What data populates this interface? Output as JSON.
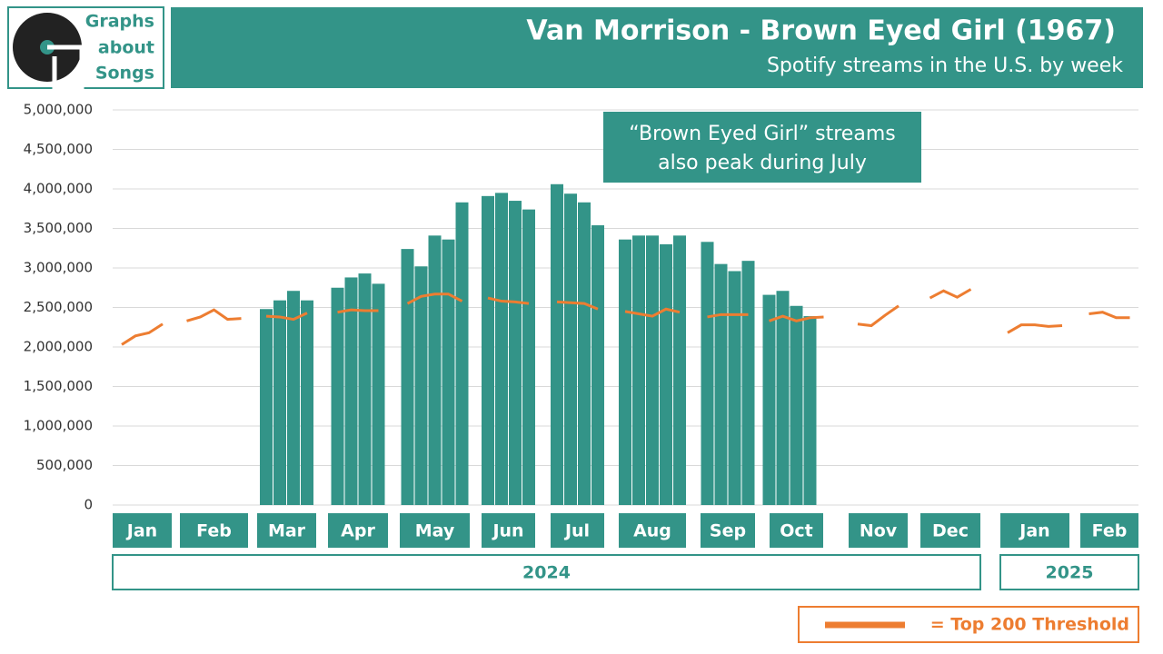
{
  "logo": {
    "text": [
      "Graphs",
      "about",
      "Songs"
    ]
  },
  "chart_data": {
    "type": "bar",
    "title": "Van Morrison - Brown Eyed Girl (1967)",
    "subtitle": "Spotify streams in the U.S. by week",
    "annotation": [
      "“Brown Eyed Girl” streams",
      "also peak during July"
    ],
    "color": "#339488",
    "line_color": "#ed7d31",
    "legend": {
      "label": "= Top 200 Threshold",
      "position": "bottom-right"
    },
    "ylim": [
      0,
      5000000
    ],
    "yticks": [
      0,
      {
        "value": 500000,
        "label": "500,000"
      },
      {
        "value": 1000000,
        "label": "1,000,000"
      },
      {
        "value": 1500000,
        "label": "1,500,000"
      },
      {
        "value": 2000000,
        "label": "2,000,000"
      },
      {
        "value": 2500000,
        "label": "2,500,000"
      },
      {
        "value": 3000000,
        "label": "3,000,000"
      },
      {
        "value": 3500000,
        "label": "3,500,000"
      },
      {
        "value": 4000000,
        "label": "4,000,000"
      },
      {
        "value": 4500000,
        "label": "4,500,000"
      },
      {
        "value": 5000000,
        "label": "5,000,000"
      }
    ],
    "grid": true,
    "years": [
      "2024",
      "2025"
    ],
    "months": [
      {
        "label": "Jan",
        "streams": [
          null,
          null,
          null,
          null
        ],
        "threshold": [
          2030000,
          2140000,
          2180000,
          2290000
        ]
      },
      {
        "label": "Feb",
        "streams": [
          null,
          null,
          null,
          null,
          null
        ],
        "threshold": [
          2330000,
          2380000,
          2470000,
          2350000,
          2360000
        ]
      },
      {
        "label": "Mar",
        "streams": [
          2480000,
          2590000,
          2710000,
          2590000
        ],
        "threshold": [
          2390000,
          2380000,
          2350000,
          2430000
        ]
      },
      {
        "label": "Apr",
        "streams": [
          2750000,
          2880000,
          2930000,
          2800000
        ],
        "threshold": [
          2440000,
          2470000,
          2460000,
          2460000
        ]
      },
      {
        "label": "May",
        "streams": [
          3240000,
          3020000,
          3410000,
          3360000,
          3830000
        ],
        "threshold": [
          2550000,
          2640000,
          2670000,
          2670000,
          2580000
        ]
      },
      {
        "label": "Jun",
        "streams": [
          3910000,
          3950000,
          3850000,
          3740000
        ],
        "threshold": [
          2620000,
          2580000,
          2570000,
          2550000
        ]
      },
      {
        "label": "Jul",
        "streams": [
          4060000,
          3940000,
          3830000,
          3540000
        ],
        "threshold": [
          2570000,
          2560000,
          2550000,
          2480000
        ]
      },
      {
        "label": "Aug",
        "streams": [
          3360000,
          3410000,
          3410000,
          3300000,
          3410000
        ],
        "threshold": [
          2450000,
          2420000,
          2390000,
          2480000,
          2440000
        ]
      },
      {
        "label": "Sep",
        "streams": [
          3330000,
          3050000,
          2960000,
          3090000
        ],
        "threshold": [
          2380000,
          2410000,
          2410000,
          2410000
        ]
      },
      {
        "label": "Oct",
        "streams": [
          2660000,
          2710000,
          2520000,
          2390000,
          null
        ],
        "threshold": [
          2330000,
          2390000,
          2330000,
          2370000,
          2380000
        ]
      },
      {
        "label": "Nov",
        "streams": [
          null,
          null,
          null,
          null
        ],
        "threshold": [
          2290000,
          2270000,
          2400000,
          2520000
        ]
      },
      {
        "label": "Dec",
        "streams": [
          null,
          null,
          null,
          null
        ],
        "threshold": [
          2620000,
          2710000,
          2630000,
          2730000
        ]
      },
      {
        "label": "Jan",
        "streams": [
          null,
          null,
          null,
          null,
          null
        ],
        "threshold": [
          2180000,
          2280000,
          2280000,
          2260000,
          2270000
        ]
      },
      {
        "label": "Feb",
        "streams": [
          null,
          null,
          null,
          null
        ],
        "threshold": [
          2420000,
          2440000,
          2370000,
          2370000
        ]
      }
    ]
  }
}
